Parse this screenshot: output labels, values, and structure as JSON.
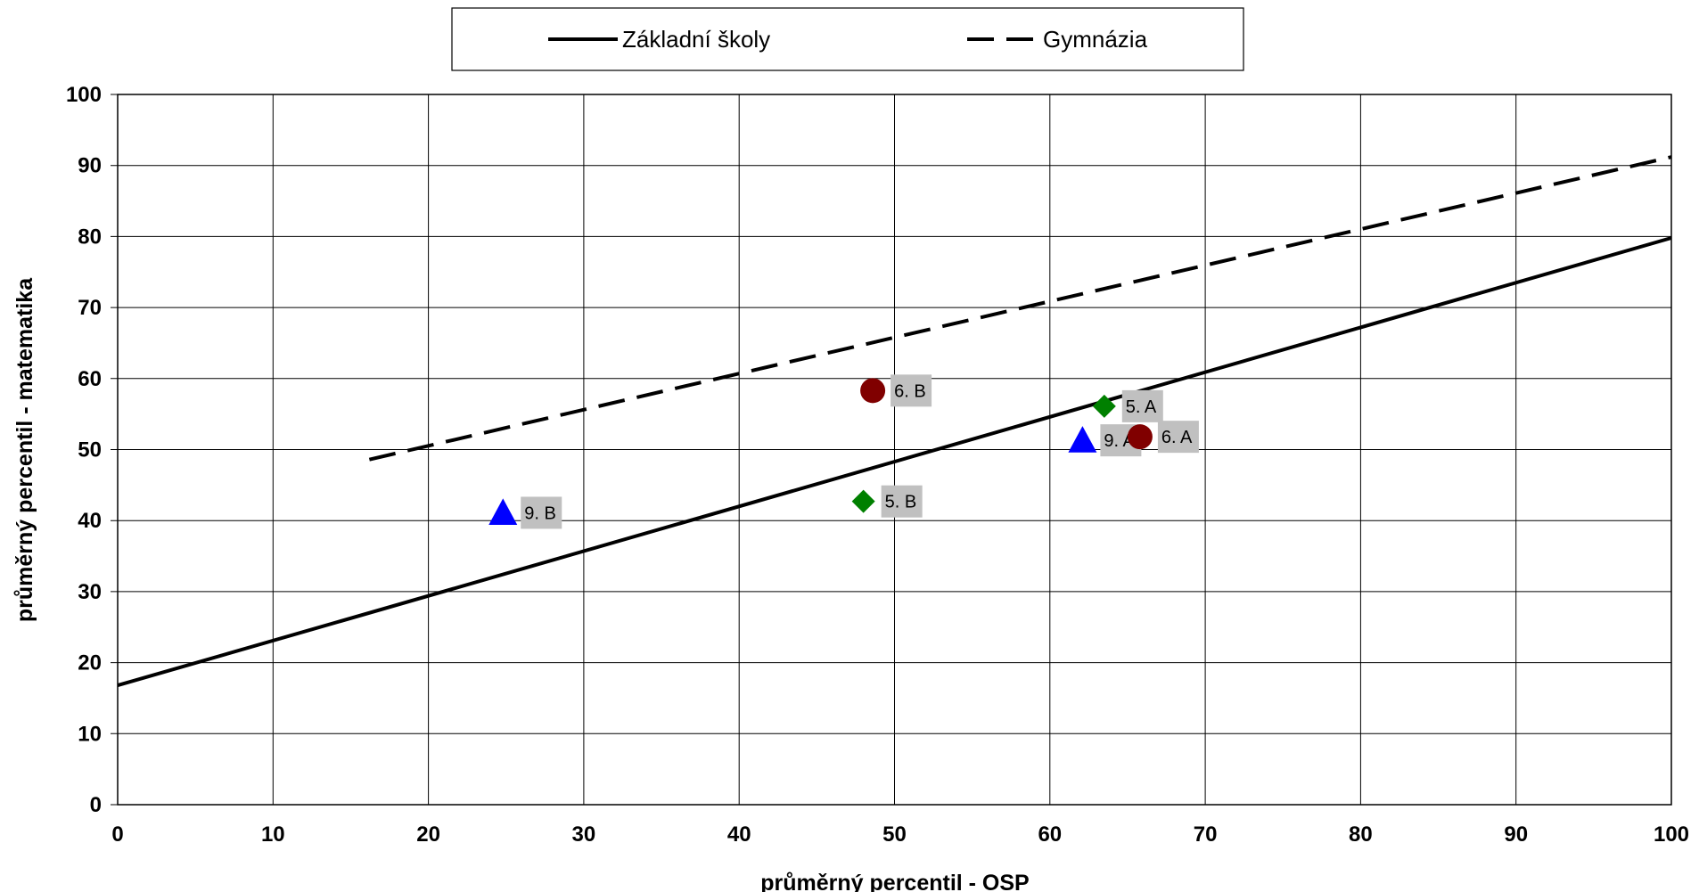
{
  "chart_data": {
    "type": "scatter",
    "title": "",
    "xlabel": "průměrný percentil - OSP",
    "ylabel": "průměrný percentil - matematika",
    "xlim": [
      0,
      100
    ],
    "ylim": [
      0,
      100
    ],
    "x_ticks": [
      "0",
      "10",
      "20",
      "30",
      "40",
      "50",
      "60",
      "70",
      "80",
      "90",
      "100"
    ],
    "y_ticks": [
      "0",
      "10",
      "20",
      "30",
      "40",
      "50",
      "60",
      "70",
      "80",
      "90",
      "100"
    ],
    "grid": true,
    "legend_position": "top",
    "legend": [
      {
        "label": "Základní školy",
        "style": "solid"
      },
      {
        "label": "Gymnázia",
        "style": "dashed"
      }
    ],
    "lines": [
      {
        "name": "Základní školy",
        "style": "solid",
        "x": [
          0,
          100
        ],
        "y": [
          16.8,
          79.8
        ]
      },
      {
        "name": "Gymnázia",
        "style": "dashed",
        "x": [
          16.2,
          100
        ],
        "y": [
          48.6,
          91.2
        ]
      }
    ],
    "points": [
      {
        "label": "6. B",
        "x": 48.6,
        "y": 58.3,
        "marker": "circle",
        "color": "#800000"
      },
      {
        "label": "5. A",
        "x": 63.5,
        "y": 56.1,
        "marker": "diamond",
        "color": "#008000"
      },
      {
        "label": "9. A",
        "x": 62.1,
        "y": 51.3,
        "marker": "triangle",
        "color": "#0000ff"
      },
      {
        "label": "6. A",
        "x": 65.8,
        "y": 51.8,
        "marker": "circle",
        "color": "#800000"
      },
      {
        "label": "5. B",
        "x": 48.0,
        "y": 42.7,
        "marker": "diamond",
        "color": "#008000"
      },
      {
        "label": "9. B",
        "x": 24.8,
        "y": 41.1,
        "marker": "triangle",
        "color": "#0000ff"
      }
    ]
  }
}
